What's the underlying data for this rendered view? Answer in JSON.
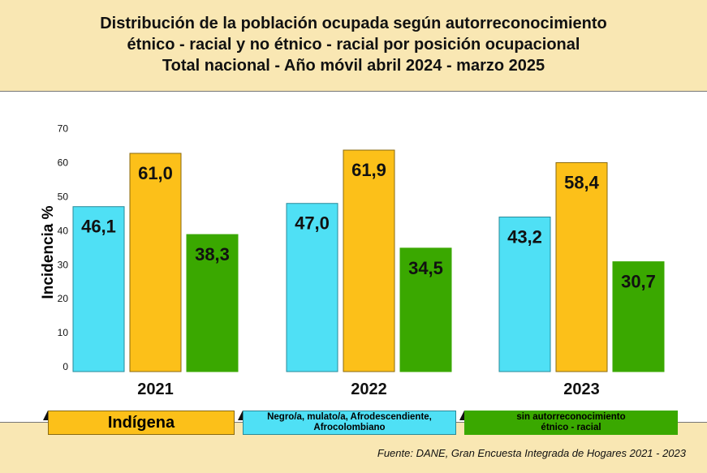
{
  "chart_data": {
    "type": "bar",
    "title": [
      "Distribución de la población ocupada según autorreconocimiento",
      "étnico - racial y no étnico - racial por posición ocupacional",
      "Total nacional - Año móvil abril 2024 - marzo 2025"
    ],
    "ylabel": "Incidencia %",
    "ylim": [
      0,
      70
    ],
    "yticks": [
      "0",
      "10",
      "20",
      "30",
      "40",
      "50",
      "60",
      "70"
    ],
    "categories": [
      "2021",
      "2022",
      "2023"
    ],
    "series": [
      {
        "name": "Negro/a, mulato/a, Afrodescendiente, Afrocolombiano",
        "color": "#4fe0f5",
        "values": [
          46.1,
          47.0,
          43.2
        ],
        "labels": [
          "46,1",
          "47,0",
          "43,2"
        ]
      },
      {
        "name": "Indígena",
        "color": "#fcc019",
        "values": [
          61.0,
          61.9,
          58.4
        ],
        "labels": [
          "61,0",
          "61,9",
          "58,4"
        ]
      },
      {
        "name": "sin autorreconocimiento étnico - racial",
        "color": "#3aa800",
        "values": [
          38.3,
          34.5,
          30.7
        ],
        "labels": [
          "38,3",
          "34,5",
          "30,7"
        ]
      }
    ],
    "legend": {
      "indigena": "Indígena",
      "negro_l1": "Negro/a, mulato/a, Afrodescendiente,",
      "negro_l2": "Afrocolombiano",
      "sin_l1": "sin autorreconocimiento",
      "sin_l2": "étnico - racial"
    },
    "source": "Fuente: DANE, Gran Encuesta Integrada de Hogares 2021 - 2023"
  }
}
